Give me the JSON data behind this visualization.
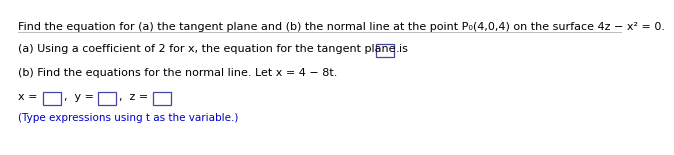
{
  "bg_color": "#ffffff",
  "text_color": "#000000",
  "blue_color": "#0000cc",
  "sep_color": "#bbbbbb",
  "box_color": "#4444aa",
  "title_line": "Find the equation for (a) the tangent plane and (b) the normal line at the point P₀(4,0,4) on the surface 4z − x² = 0.",
  "line_a": "(a) Using a coefficient of 2 for x, the equation for the tangent plane is",
  "line_b": "(b) Find the equations for the normal line. Let x = 4 − 8t.",
  "line_d": "(Type expressions using t as the variable.)",
  "font_size": 8.0,
  "font_size_small": 7.5
}
